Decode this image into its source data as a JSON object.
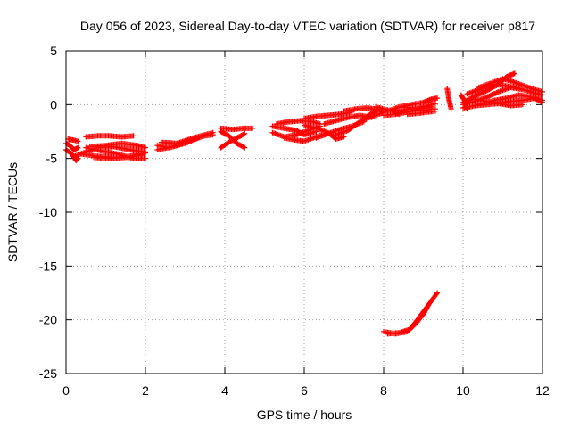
{
  "chart_data": {
    "type": "scatter",
    "title": "Day 056 of 2023, Sidereal Day-to-day VTEC variation (SDTVAR) for receiver p817",
    "xlabel": "GPS time / hours",
    "ylabel": "SDTVAR / TECUs",
    "xlim": [
      0,
      12
    ],
    "ylim": [
      -25,
      5
    ],
    "xticks": [
      "0",
      "2",
      "4",
      "6",
      "8",
      "10",
      "12"
    ],
    "yticks": [
      "5",
      "0",
      "-5",
      "-10",
      "-15",
      "-20",
      "-25"
    ],
    "grid": true,
    "marker": "plus",
    "series_color": "#ff0000",
    "tracks": [
      [
        [
          0.0,
          -3.6
        ],
        [
          0.1,
          -3.8
        ],
        [
          0.2,
          -4.2
        ],
        [
          0.3,
          -4.0
        ]
      ],
      [
        [
          0.0,
          -4.2
        ],
        [
          0.15,
          -4.6
        ],
        [
          0.25,
          -5.2
        ],
        [
          0.3,
          -5.0
        ]
      ],
      [
        [
          0.05,
          -3.2
        ],
        [
          0.2,
          -3.3
        ],
        [
          0.3,
          -3.4
        ]
      ],
      [
        [
          0.2,
          -4.8
        ],
        [
          0.5,
          -4.4
        ],
        [
          0.8,
          -4.0
        ],
        [
          1.2,
          -3.9
        ],
        [
          1.6,
          -4.2
        ],
        [
          2.0,
          -4.4
        ]
      ],
      [
        [
          0.4,
          -4.6
        ],
        [
          0.8,
          -4.8
        ],
        [
          1.2,
          -4.9
        ],
        [
          1.6,
          -4.8
        ],
        [
          2.0,
          -4.5
        ]
      ],
      [
        [
          0.5,
          -4.0
        ],
        [
          0.9,
          -4.3
        ],
        [
          1.3,
          -4.6
        ],
        [
          1.7,
          -5.0
        ],
        [
          2.0,
          -5.0
        ]
      ],
      [
        [
          0.5,
          -3.0
        ],
        [
          0.8,
          -2.9
        ],
        [
          1.1,
          -2.9
        ],
        [
          1.4,
          -3.0
        ],
        [
          1.7,
          -2.9
        ]
      ],
      [
        [
          0.6,
          -3.9
        ],
        [
          1.0,
          -3.8
        ],
        [
          1.4,
          -3.6
        ],
        [
          1.8,
          -3.8
        ],
        [
          2.0,
          -4.0
        ]
      ],
      [
        [
          0.7,
          -4.9
        ],
        [
          1.1,
          -5.0
        ],
        [
          1.5,
          -4.9
        ],
        [
          1.9,
          -4.7
        ]
      ],
      [
        [
          2.3,
          -3.8
        ],
        [
          2.6,
          -4.0
        ],
        [
          3.0,
          -3.6
        ],
        [
          3.4,
          -3.0
        ],
        [
          3.7,
          -2.6
        ]
      ],
      [
        [
          2.3,
          -4.2
        ],
        [
          2.7,
          -3.9
        ],
        [
          3.1,
          -3.3
        ],
        [
          3.5,
          -2.9
        ],
        [
          3.7,
          -2.8
        ]
      ],
      [
        [
          2.4,
          -3.5
        ],
        [
          2.8,
          -3.6
        ],
        [
          3.2,
          -3.1
        ],
        [
          3.6,
          -2.7
        ]
      ],
      [
        [
          3.9,
          -2.2
        ],
        [
          4.2,
          -2.3
        ],
        [
          4.5,
          -2.2
        ],
        [
          4.7,
          -2.2
        ]
      ],
      [
        [
          3.9,
          -2.5
        ],
        [
          4.1,
          -2.9
        ],
        [
          4.3,
          -3.6
        ],
        [
          4.5,
          -4.0
        ]
      ],
      [
        [
          3.9,
          -4.0
        ],
        [
          4.1,
          -3.5
        ],
        [
          4.3,
          -3.1
        ],
        [
          4.5,
          -2.7
        ]
      ],
      [
        [
          5.2,
          -2.0
        ],
        [
          5.5,
          -2.2
        ],
        [
          5.8,
          -2.4
        ],
        [
          6.0,
          -2.8
        ],
        [
          6.3,
          -2.5
        ]
      ],
      [
        [
          5.2,
          -2.6
        ],
        [
          5.5,
          -3.0
        ],
        [
          5.8,
          -2.8
        ],
        [
          6.1,
          -2.4
        ],
        [
          6.4,
          -2.0
        ]
      ],
      [
        [
          5.3,
          -1.8
        ],
        [
          5.6,
          -1.6
        ],
        [
          5.9,
          -1.5
        ],
        [
          6.2,
          -1.6
        ],
        [
          6.4,
          -1.8
        ]
      ],
      [
        [
          5.5,
          -3.1
        ],
        [
          5.8,
          -3.3
        ],
        [
          6.0,
          -3.4
        ],
        [
          6.3,
          -3.0
        ],
        [
          6.6,
          -2.6
        ]
      ],
      [
        [
          6.0,
          -1.3
        ],
        [
          6.3,
          -1.1
        ],
        [
          6.6,
          -1.0
        ],
        [
          6.9,
          -0.9
        ],
        [
          7.2,
          -0.7
        ]
      ],
      [
        [
          6.0,
          -1.9
        ],
        [
          6.3,
          -2.2
        ],
        [
          6.6,
          -2.6
        ],
        [
          6.8,
          -3.2
        ],
        [
          7.0,
          -3.0
        ]
      ],
      [
        [
          6.3,
          -3.1
        ],
        [
          6.6,
          -2.7
        ],
        [
          6.9,
          -2.3
        ],
        [
          7.2,
          -2.0
        ],
        [
          7.5,
          -1.6
        ]
      ],
      [
        [
          6.5,
          -1.8
        ],
        [
          6.8,
          -1.5
        ],
        [
          7.1,
          -1.2
        ],
        [
          7.4,
          -1.0
        ],
        [
          7.7,
          -1.2
        ]
      ],
      [
        [
          6.8,
          -2.8
        ],
        [
          7.1,
          -2.4
        ],
        [
          7.4,
          -1.6
        ],
        [
          7.7,
          -0.8
        ],
        [
          7.9,
          -0.4
        ]
      ],
      [
        [
          7.0,
          -0.6
        ],
        [
          7.3,
          -0.4
        ],
        [
          7.6,
          -0.3
        ],
        [
          7.9,
          -0.5
        ],
        [
          8.0,
          -0.7
        ]
      ],
      [
        [
          7.5,
          -1.4
        ],
        [
          7.8,
          -1.0
        ],
        [
          8.1,
          -0.6
        ],
        [
          8.4,
          -0.2
        ],
        [
          8.7,
          -0.3
        ]
      ],
      [
        [
          7.8,
          -0.2
        ],
        [
          8.0,
          -0.4
        ],
        [
          8.2,
          -0.6
        ],
        [
          8.4,
          -0.9
        ]
      ],
      [
        [
          8.0,
          -1.0
        ],
        [
          8.3,
          -0.9
        ],
        [
          8.6,
          -0.7
        ],
        [
          8.9,
          -0.4
        ],
        [
          9.2,
          -0.2
        ]
      ],
      [
        [
          8.2,
          -0.5
        ],
        [
          8.5,
          -0.5
        ],
        [
          8.8,
          -0.3
        ],
        [
          9.1,
          -0.1
        ],
        [
          9.3,
          0.1
        ]
      ],
      [
        [
          8.3,
          -0.8
        ],
        [
          8.6,
          -0.6
        ],
        [
          8.9,
          -0.6
        ],
        [
          9.2,
          -0.4
        ],
        [
          9.3,
          -0.4
        ]
      ],
      [
        [
          8.4,
          -0.2
        ],
        [
          8.7,
          0.0
        ],
        [
          9.0,
          0.2
        ],
        [
          9.2,
          0.5
        ],
        [
          9.35,
          0.6
        ]
      ],
      [
        [
          8.6,
          -0.9
        ],
        [
          8.9,
          -0.8
        ],
        [
          9.1,
          -0.7
        ],
        [
          9.3,
          -0.6
        ]
      ],
      [
        [
          9.6,
          1.5
        ],
        [
          9.65,
          0.4
        ],
        [
          9.7,
          -0.4
        ]
      ],
      [
        [
          9.95,
          0.9
        ],
        [
          10.05,
          0.3
        ],
        [
          10.1,
          -0.4
        ]
      ],
      [
        [
          10.0,
          0.2
        ],
        [
          10.3,
          0.8
        ],
        [
          10.6,
          1.3
        ],
        [
          10.9,
          1.9
        ],
        [
          11.1,
          2.6
        ],
        [
          11.3,
          2.9
        ]
      ],
      [
        [
          10.0,
          0.0
        ],
        [
          10.3,
          0.3
        ],
        [
          10.6,
          0.7
        ],
        [
          10.9,
          1.2
        ],
        [
          11.2,
          1.6
        ],
        [
          11.5,
          1.4
        ],
        [
          11.8,
          1.1
        ],
        [
          12.0,
          0.9
        ]
      ],
      [
        [
          10.1,
          1.0
        ],
        [
          10.4,
          1.4
        ],
        [
          10.7,
          1.9
        ],
        [
          11.0,
          1.8
        ],
        [
          11.3,
          1.6
        ],
        [
          11.6,
          1.3
        ],
        [
          11.9,
          1.0
        ]
      ],
      [
        [
          10.2,
          -0.2
        ],
        [
          10.5,
          0.1
        ],
        [
          10.8,
          0.4
        ],
        [
          11.1,
          0.6
        ],
        [
          11.4,
          0.9
        ],
        [
          11.7,
          0.7
        ],
        [
          12.0,
          0.4
        ]
      ],
      [
        [
          10.3,
          0.5
        ],
        [
          10.6,
          0.3
        ],
        [
          10.9,
          0.2
        ],
        [
          11.2,
          0.3
        ],
        [
          11.5,
          0.4
        ],
        [
          11.8,
          0.6
        ],
        [
          12.0,
          0.2
        ]
      ],
      [
        [
          10.4,
          1.6
        ],
        [
          10.7,
          2.0
        ],
        [
          11.0,
          2.4
        ],
        [
          11.2,
          2.2
        ],
        [
          11.5,
          1.8
        ],
        [
          11.8,
          1.4
        ],
        [
          12.0,
          1.2
        ]
      ],
      [
        [
          10.0,
          -0.3
        ],
        [
          10.3,
          -0.1
        ],
        [
          10.6,
          0.0
        ],
        [
          10.9,
          0.1
        ],
        [
          11.2,
          -0.1
        ],
        [
          11.5,
          0.0
        ]
      ],
      [
        [
          8.0,
          -21.1
        ],
        [
          8.3,
          -21.3
        ],
        [
          8.6,
          -21.1
        ],
        [
          8.8,
          -20.4
        ],
        [
          9.0,
          -19.5
        ],
        [
          9.15,
          -18.5
        ],
        [
          9.35,
          -17.5
        ]
      ],
      [
        [
          8.1,
          -21.3
        ],
        [
          8.4,
          -21.2
        ],
        [
          8.65,
          -20.9
        ],
        [
          8.85,
          -20.0
        ],
        [
          9.05,
          -19.0
        ],
        [
          9.25,
          -18.0
        ]
      ]
    ]
  }
}
